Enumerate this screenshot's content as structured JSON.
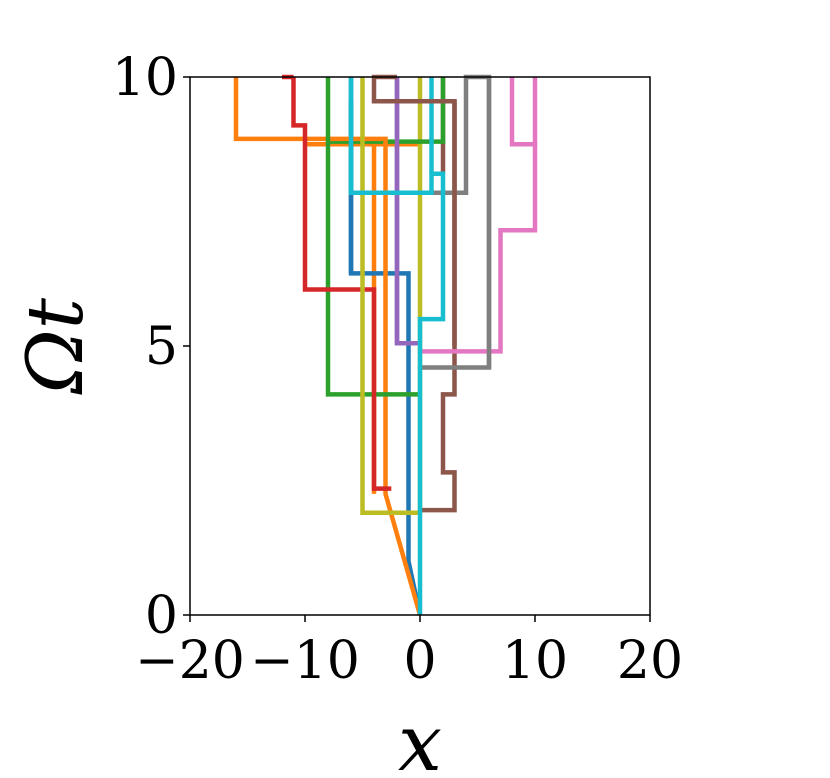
{
  "chart_data": {
    "type": "line",
    "xlabel": "x",
    "ylabel": "Ωt",
    "xlim": [
      -20,
      20
    ],
    "ylim": [
      0,
      10
    ],
    "xticks": [
      -20,
      -10,
      0,
      10,
      20
    ],
    "xtick_labels": [
      "−20",
      "−10",
      "0",
      "10",
      "20"
    ],
    "yticks": [
      0,
      5,
      10
    ],
    "ytick_labels": [
      "0",
      "5",
      "10"
    ],
    "grid": false,
    "series": [
      {
        "color": "#1f77b4",
        "x": [
          0,
          -1,
          -1,
          -6,
          -6,
          -6
        ],
        "y": [
          0,
          1.0,
          6.35,
          6.35,
          8.2,
          10
        ]
      },
      {
        "color": "#ff7f0e",
        "x": [
          0,
          -3,
          -3,
          -16,
          -16
        ],
        "y": [
          0,
          2.25,
          8.85,
          8.85,
          10
        ]
      },
      {
        "color": "#2ca02c",
        "x": [
          0,
          -8,
          -8
        ],
        "y": [
          4.1,
          4.1,
          10
        ]
      },
      {
        "color": "#d62728",
        "x": [
          -2.5,
          -4,
          -4,
          -10,
          -10,
          -11,
          -11
        ],
        "y": [
          2.35,
          2.35,
          6.05,
          6.05,
          9.1,
          9.1,
          10
        ]
      },
      {
        "color": "#9467bd",
        "x": [
          0,
          -2,
          -2,
          -2
        ],
        "y": [
          5.05,
          5.05,
          9.3,
          10
        ]
      },
      {
        "color": "#8c564b",
        "x": [
          0,
          3,
          3,
          2,
          2,
          3,
          3,
          3,
          -4,
          -4,
          -2,
          -2
        ],
        "y": [
          1.95,
          1.95,
          2.65,
          2.65,
          4.1,
          4.1,
          5.0,
          9.55,
          9.55,
          10,
          10,
          10
        ]
      },
      {
        "color": "#e377c2",
        "x": [
          0,
          7,
          7,
          10,
          10,
          8,
          8
        ],
        "y": [
          4.9,
          4.9,
          7.15,
          7.15,
          8.75,
          8.75,
          10
        ]
      },
      {
        "color": "#7f7f7f",
        "x": [
          0,
          6,
          6,
          6
        ],
        "y": [
          4.6,
          4.6,
          7.85,
          10
        ]
      },
      {
        "color": "#bcbd22",
        "x": [
          0,
          -5,
          -5,
          -5
        ],
        "y": [
          1.9,
          1.9,
          5.0,
          10
        ]
      },
      {
        "color": "#17becf",
        "x": [
          0,
          0,
          2,
          2,
          1,
          1,
          -6,
          -6,
          -6
        ],
        "y": [
          0,
          5.5,
          5.5,
          8.2,
          8.2,
          7.85,
          7.85,
          9.65,
          10
        ]
      }
    ],
    "extra_segments": [
      {
        "color": "#ff7f0e",
        "x": [
          -10,
          0
        ],
        "y": [
          8.75,
          8.75
        ]
      },
      {
        "color": "#ff7f0e",
        "x": [
          -4,
          -4
        ],
        "y": [
          2.25,
          8.75
        ]
      },
      {
        "color": "#d62728",
        "x": [
          -12,
          -11
        ],
        "y": [
          10,
          10
        ]
      },
      {
        "color": "#bcbd22",
        "x": [
          0,
          0
        ],
        "y": [
          1.9,
          10
        ]
      },
      {
        "color": "#9467bd",
        "x": [
          -2,
          -2
        ],
        "y": [
          5.05,
          10
        ]
      },
      {
        "color": "#8c564b",
        "x": [
          2,
          2
        ],
        "y": [
          8.2,
          10
        ]
      },
      {
        "color": "#8c564b",
        "x": [
          3,
          3
        ],
        "y": [
          5.0,
          9.55
        ]
      },
      {
        "color": "#2ca02c",
        "x": [
          -8,
          2,
          2
        ],
        "y": [
          8.8,
          8.8,
          10
        ]
      },
      {
        "color": "#1f77b4",
        "x": [
          -6,
          -6
        ],
        "y": [
          6.35,
          9.6
        ]
      },
      {
        "color": "#17becf",
        "x": [
          1,
          1
        ],
        "y": [
          8.2,
          10
        ]
      },
      {
        "color": "#7f7f7f",
        "x": [
          -2,
          4,
          4,
          6,
          6
        ],
        "y": [
          7.85,
          7.85,
          10,
          10,
          4.6
        ]
      },
      {
        "color": "#e377c2",
        "x": [
          8,
          10,
          10
        ],
        "y": [
          8.75,
          8.75,
          10
        ]
      }
    ]
  }
}
